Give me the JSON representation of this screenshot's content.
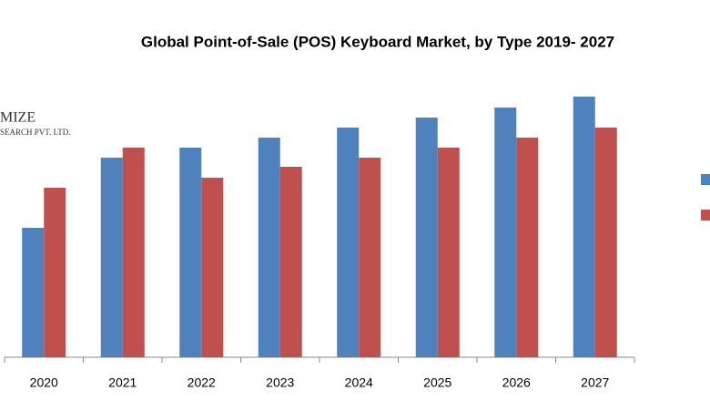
{
  "chart_data": {
    "type": "bar",
    "title": "Global Point-of-Sale (POS) Keyboard Market, by Type 2019- 2027",
    "watermark": [
      "MIZE",
      "SEARCH PVT. LTD."
    ],
    "categories": [
      "2020",
      "2021",
      "2022",
      "2023",
      "2024",
      "2025",
      "2026",
      "2027"
    ],
    "series": [
      {
        "color": "#4f81bd",
        "values": [
          142,
          219,
          230,
          241,
          252,
          263,
          274,
          286
        ]
      },
      {
        "color": "#c0504d",
        "values": [
          186,
          230,
          197,
          209,
          219,
          230,
          241,
          252
        ]
      }
    ],
    "ylim": [
      0,
      300
    ]
  }
}
